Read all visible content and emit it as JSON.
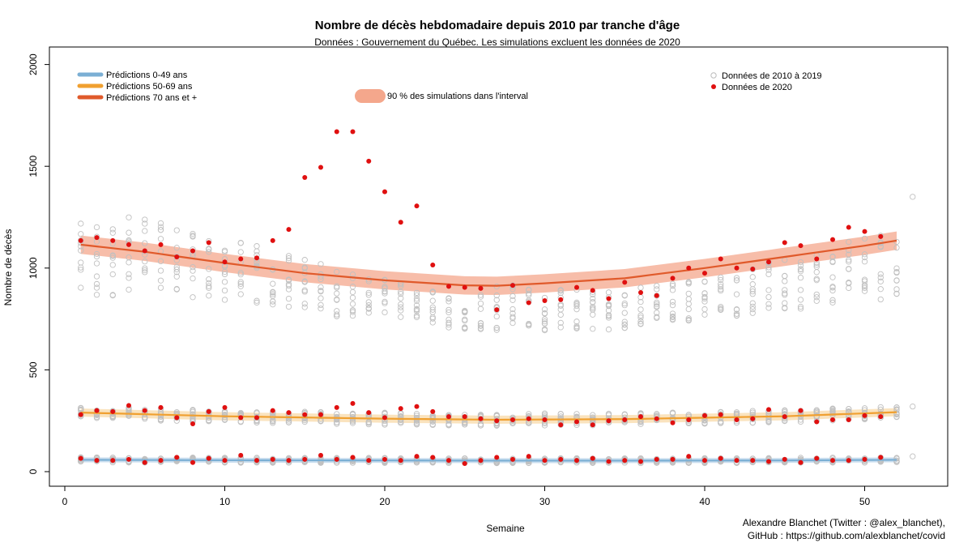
{
  "chart_data": {
    "type": "scatter",
    "title": "Nombre de décès hebdomadaire depuis 2010 par tranche d'âge",
    "subtitle": "Données : Gouvernement du Québec. Les simulations excluent les données de 2020",
    "xlabel": "Semaine",
    "ylabel": "Nombre de décès",
    "xlim": [
      0,
      55
    ],
    "ylim": [
      -80,
      2050
    ],
    "x_ticks": [
      0,
      10,
      20,
      30,
      40,
      50
    ],
    "y_ticks": [
      0,
      500,
      1000,
      1500,
      2000
    ],
    "grid": false,
    "credit_lines": [
      "Alexandre Blanchet (Twitter : @alex_blanchet),",
      "GitHub : https://github.com/alexblanchet/covid"
    ],
    "legend_left": [
      {
        "label": "Prédictions 0-49 ans",
        "color": "#7bafd4"
      },
      {
        "label": "Prédictions 50-69 ans",
        "color": "#f0a030"
      },
      {
        "label": "Prédictions 70 ans et +",
        "color": "#e05a2b"
      }
    ],
    "legend_band": {
      "label": "90 % des simulations dans l'interval",
      "color": "#f4a78c"
    },
    "legend_right": [
      {
        "label": "Données de 2010 à 2019",
        "color": "#bbbbbb"
      },
      {
        "label": "Données de 2020",
        "color": "#e01010"
      }
    ],
    "predictions": [
      {
        "name": "Prédictions 0-49 ans",
        "color": "#7bafd4",
        "band_color": "#b8d3ea",
        "knots_x": [
          1,
          10,
          20,
          27,
          35,
          45,
          52
        ],
        "knots_y": [
          58,
          56,
          55,
          54,
          54,
          55,
          58
        ],
        "band_halfwidth": 12
      },
      {
        "name": "Prédictions 50-69 ans",
        "color": "#f0a030",
        "band_color": "#f8d9a8",
        "knots_x": [
          1,
          10,
          20,
          27,
          35,
          45,
          52
        ],
        "knots_y": [
          290,
          272,
          260,
          255,
          258,
          272,
          292
        ],
        "band_halfwidth": 20
      },
      {
        "name": "Prédictions 70 ans et +",
        "color": "#e05a2b",
        "band_color": "#f4a78c",
        "knots_x": [
          1,
          5,
          10,
          15,
          20,
          25,
          27,
          30,
          35,
          40,
          45,
          50,
          52
        ],
        "knots_y": [
          1115,
          1080,
          1025,
          975,
          940,
          915,
          913,
          925,
          950,
          1000,
          1055,
          1110,
          1135
        ],
        "band_halfwidth": 45
      }
    ],
    "historical_ranges": {
      "series_0_49": {
        "base": [
          58,
          56,
          55,
          54,
          54,
          55,
          58
        ],
        "spread": 25
      },
      "series_50_69": {
        "base": [
          290,
          272,
          260,
          255,
          258,
          272,
          292
        ],
        "spread": 60
      },
      "series_70_plus": {
        "x": [
          1,
          5,
          10,
          15,
          20,
          25,
          27,
          30,
          35,
          40,
          45,
          50,
          52
        ],
        "low": [
          860,
          860,
          830,
          790,
          720,
          700,
          690,
          690,
          700,
          750,
          780,
          830,
          860
        ],
        "high": [
          1250,
          1250,
          1150,
          1050,
          950,
          850,
          930,
          900,
          900,
          950,
          1050,
          1150,
          1180
        ]
      },
      "week_53": [
        75,
        320,
        1350
      ]
    },
    "series_2020": [
      {
        "name": "Données de 2020 — 70 ans et +",
        "x": [
          1,
          2,
          3,
          4,
          5,
          6,
          7,
          8,
          9,
          10,
          11,
          12,
          13,
          14,
          15,
          16,
          17,
          18,
          19,
          20,
          21,
          22,
          23,
          24,
          25,
          26,
          27,
          28,
          29,
          30,
          31,
          32,
          33,
          34,
          35,
          36,
          37,
          38,
          39,
          40,
          41,
          42,
          43,
          44,
          45,
          46,
          47,
          48,
          49,
          50,
          51
        ],
        "y": [
          1135,
          1150,
          1135,
          1115,
          1085,
          1115,
          1055,
          1085,
          1125,
          1030,
          1045,
          1050,
          1135,
          1190,
          1445,
          1495,
          1670,
          1670,
          1525,
          1375,
          1225,
          1305,
          1015,
          910,
          905,
          900,
          795,
          915,
          830,
          840,
          845,
          905,
          890,
          850,
          930,
          880,
          865,
          950,
          1000,
          975,
          1045,
          1000,
          995,
          1030,
          1125,
          1110,
          1045,
          1140,
          1200,
          1180,
          1155
        ]
      },
      {
        "name": "Données de 2020 — 50-69 ans",
        "x": [
          1,
          2,
          3,
          4,
          5,
          6,
          7,
          8,
          9,
          10,
          11,
          12,
          13,
          14,
          15,
          16,
          17,
          18,
          19,
          20,
          21,
          22,
          23,
          24,
          25,
          26,
          27,
          28,
          29,
          30,
          31,
          32,
          33,
          34,
          35,
          36,
          37,
          38,
          39,
          40,
          41,
          42,
          43,
          44,
          45,
          46,
          47,
          48,
          49,
          50,
          51
        ],
        "y": [
          280,
          300,
          295,
          325,
          300,
          315,
          265,
          235,
          295,
          315,
          265,
          265,
          300,
          290,
          280,
          280,
          315,
          335,
          290,
          265,
          310,
          320,
          295,
          270,
          270,
          260,
          250,
          255,
          260,
          255,
          230,
          245,
          230,
          250,
          255,
          270,
          260,
          240,
          255,
          275,
          280,
          255,
          260,
          305,
          270,
          300,
          245,
          255,
          255,
          275,
          270
        ]
      },
      {
        "name": "Données de 2020 — 0-49 ans",
        "x": [
          1,
          2,
          3,
          4,
          5,
          6,
          7,
          8,
          9,
          10,
          11,
          12,
          13,
          14,
          15,
          16,
          17,
          18,
          19,
          20,
          21,
          22,
          23,
          24,
          25,
          26,
          27,
          28,
          29,
          30,
          31,
          32,
          33,
          34,
          35,
          36,
          37,
          38,
          39,
          40,
          41,
          42,
          43,
          44,
          45,
          46,
          47,
          48,
          49,
          50,
          51
        ],
        "y": [
          65,
          55,
          55,
          60,
          45,
          55,
          70,
          45,
          65,
          55,
          80,
          55,
          60,
          55,
          60,
          80,
          60,
          70,
          55,
          60,
          55,
          75,
          70,
          55,
          40,
          55,
          70,
          60,
          75,
          55,
          60,
          55,
          65,
          50,
          55,
          50,
          60,
          60,
          75,
          55,
          65,
          55,
          55,
          50,
          60,
          45,
          65,
          55,
          55,
          60,
          70
        ]
      }
    ]
  }
}
